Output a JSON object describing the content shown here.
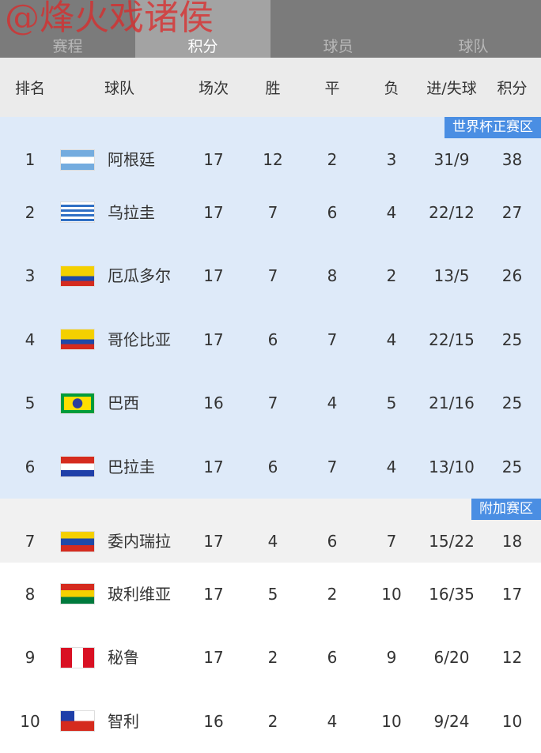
{
  "watermark": "@烽火戏诸侯",
  "tabs": [
    {
      "label": "赛程"
    },
    {
      "label": "积分"
    },
    {
      "label": "球员"
    },
    {
      "label": "球队"
    }
  ],
  "columns": [
    "排名",
    "球队",
    "场次",
    "胜",
    "平",
    "负",
    "进/失球",
    "积分"
  ],
  "zones": {
    "world_cup": "世界杯正赛区",
    "playoff": "附加赛区"
  },
  "colors": {
    "world_cup_zone": "#deeaf9",
    "playoff_zone": "#f1f1f1",
    "badge": "#4a8ee3"
  },
  "rows": [
    {
      "rank": "1",
      "team": "阿根廷",
      "played": "17",
      "won": "12",
      "drawn": "2",
      "lost": "3",
      "goals": "31/9",
      "points": "38",
      "flag": "argentina"
    },
    {
      "rank": "2",
      "team": "乌拉圭",
      "played": "17",
      "won": "7",
      "drawn": "6",
      "lost": "4",
      "goals": "22/12",
      "points": "27",
      "flag": "uruguay"
    },
    {
      "rank": "3",
      "team": "厄瓜多尔",
      "played": "17",
      "won": "7",
      "drawn": "8",
      "lost": "2",
      "goals": "13/5",
      "points": "26",
      "flag": "ecuador"
    },
    {
      "rank": "4",
      "team": "哥伦比亚",
      "played": "17",
      "won": "6",
      "drawn": "7",
      "lost": "4",
      "goals": "22/15",
      "points": "25",
      "flag": "colombia"
    },
    {
      "rank": "5",
      "team": "巴西",
      "played": "16",
      "won": "7",
      "drawn": "4",
      "lost": "5",
      "goals": "21/16",
      "points": "25",
      "flag": "brazil"
    },
    {
      "rank": "6",
      "team": "巴拉圭",
      "played": "17",
      "won": "6",
      "drawn": "7",
      "lost": "4",
      "goals": "13/10",
      "points": "25",
      "flag": "paraguay"
    },
    {
      "rank": "7",
      "team": "委内瑞拉",
      "played": "17",
      "won": "4",
      "drawn": "6",
      "lost": "7",
      "goals": "15/22",
      "points": "18",
      "flag": "venezuela"
    },
    {
      "rank": "8",
      "team": "玻利维亚",
      "played": "17",
      "won": "5",
      "drawn": "2",
      "lost": "10",
      "goals": "16/35",
      "points": "17",
      "flag": "bolivia"
    },
    {
      "rank": "9",
      "team": "秘鲁",
      "played": "17",
      "won": "2",
      "drawn": "6",
      "lost": "9",
      "goals": "6/20",
      "points": "12",
      "flag": "peru"
    },
    {
      "rank": "10",
      "team": "智利",
      "played": "16",
      "won": "2",
      "drawn": "4",
      "lost": "10",
      "goals": "9/24",
      "points": "10",
      "flag": "chile"
    }
  ]
}
